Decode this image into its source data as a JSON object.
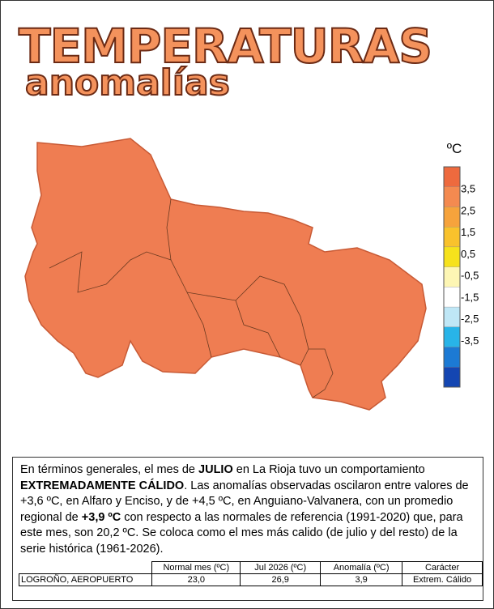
{
  "header": {
    "title": "TEMPERATURAS",
    "subtitle": "anomalías"
  },
  "legend": {
    "unit": "ºC",
    "colors": [
      "#ee6a3e",
      "#f48a50",
      "#f6a33c",
      "#f9c22c",
      "#f6e21c",
      "#fdf6b4",
      "#ffffff",
      "#bfe7f6",
      "#28b4e8",
      "#1c7ad4",
      "#1446b2"
    ],
    "labels": [
      "3,5",
      "2,5",
      "1,5",
      "0,5",
      "-0,5",
      "-1,5",
      "-2,5",
      "-3,5"
    ]
  },
  "text": {
    "segments": [
      {
        "text": "En términos generales, el mes de ",
        "bold": false
      },
      {
        "text": "JULIO",
        "bold": true
      },
      {
        "text": " en La Rioja tuvo un comportamiento ",
        "bold": false
      },
      {
        "text": "EXTREMADAMENTE CÁLIDO",
        "bold": true
      },
      {
        "text": ". Las anomalías observadas oscilaron entre valores de +3,6 ºC, en Alfaro y Enciso, y de +4,5 ºC, en Anguiano-Valvanera, con un promedio regional de ",
        "bold": false
      },
      {
        "text": "+3,9 ºC",
        "bold": true
      },
      {
        "text": " con respecto a las normales de referencia (1991-2020) que, para este mes, son 20,2 ºC. Se coloca como el mes más calido (de julio y del resto) de la serie histórica (1961-2026).",
        "bold": false
      }
    ]
  },
  "table": {
    "header": [
      "Normal mes (ºC)",
      "Jul 2026 (ºC)",
      "Anomalía (ºC)",
      "Carácter"
    ],
    "rows": [
      [
        "LOGROÑO, AEROPUERTO",
        "23,0",
        "26,9",
        "3,9",
        "Extrem. Cálido"
      ]
    ]
  }
}
